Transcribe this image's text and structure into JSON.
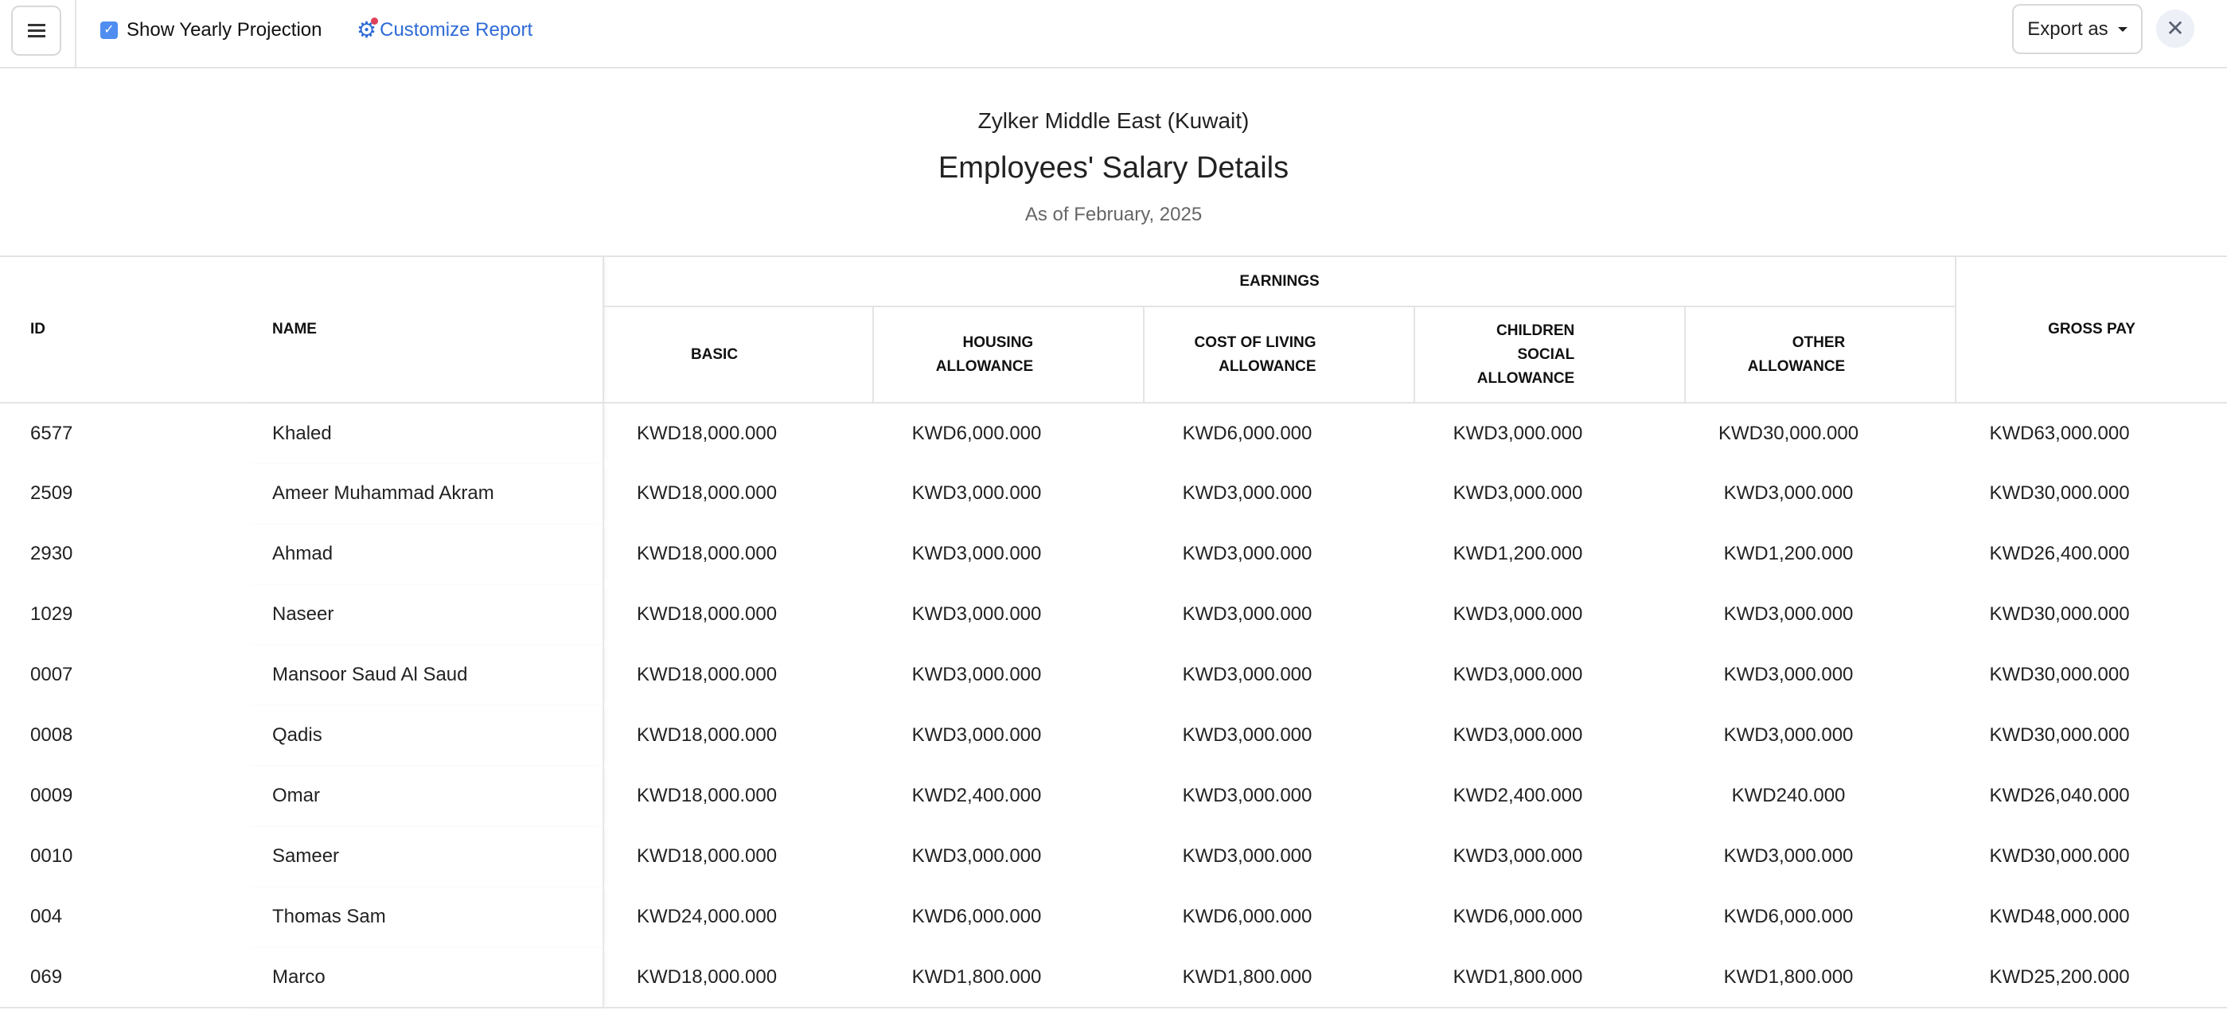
{
  "toolbar": {
    "show_yearly_projection": "Show Yearly Projection",
    "show_yearly_checked": true,
    "customize_report": "Customize Report",
    "export_as": "Export as",
    "accent_color": "#2d6ad6"
  },
  "report": {
    "company": "Zylker Middle East (Kuwait)",
    "title": "Employees' Salary Details",
    "subtitle": "As of February, 2025"
  },
  "table": {
    "headers": {
      "id": "ID",
      "name": "NAME",
      "earnings": "EARNINGS",
      "basic": "BASIC",
      "housing_1": "HOUSING",
      "housing_2": "ALLOWANCE",
      "col_1": "COST OF LIVING",
      "col_2": "ALLOWANCE",
      "children_1": "CHILDREN",
      "children_2": "SOCIAL",
      "children_3": "ALLOWANCE",
      "other_1": "OTHER",
      "other_2": "ALLOWANCE",
      "gross": "GROSS PAY"
    },
    "rows": [
      {
        "id": "6577",
        "name": "Khaled",
        "basic": "KWD18,000.000",
        "housing": "KWD6,000.000",
        "col": "KWD6,000.000",
        "children": "KWD3,000.000",
        "other": "KWD30,000.000",
        "gross": "KWD63,000.000"
      },
      {
        "id": "2509",
        "name": "Ameer Muhammad Akram",
        "basic": "KWD18,000.000",
        "housing": "KWD3,000.000",
        "col": "KWD3,000.000",
        "children": "KWD3,000.000",
        "other": "KWD3,000.000",
        "gross": "KWD30,000.000"
      },
      {
        "id": "2930",
        "name": "Ahmad",
        "basic": "KWD18,000.000",
        "housing": "KWD3,000.000",
        "col": "KWD3,000.000",
        "children": "KWD1,200.000",
        "other": "KWD1,200.000",
        "gross": "KWD26,400.000"
      },
      {
        "id": "1029",
        "name": "Naseer",
        "basic": "KWD18,000.000",
        "housing": "KWD3,000.000",
        "col": "KWD3,000.000",
        "children": "KWD3,000.000",
        "other": "KWD3,000.000",
        "gross": "KWD30,000.000"
      },
      {
        "id": "0007",
        "name": "Mansoor Saud Al Saud",
        "basic": "KWD18,000.000",
        "housing": "KWD3,000.000",
        "col": "KWD3,000.000",
        "children": "KWD3,000.000",
        "other": "KWD3,000.000",
        "gross": "KWD30,000.000"
      },
      {
        "id": "0008",
        "name": "Qadis",
        "basic": "KWD18,000.000",
        "housing": "KWD3,000.000",
        "col": "KWD3,000.000",
        "children": "KWD3,000.000",
        "other": "KWD3,000.000",
        "gross": "KWD30,000.000"
      },
      {
        "id": "0009",
        "name": "Omar",
        "basic": "KWD18,000.000",
        "housing": "KWD2,400.000",
        "col": "KWD3,000.000",
        "children": "KWD2,400.000",
        "other": "KWD240.000",
        "gross": "KWD26,040.000"
      },
      {
        "id": "0010",
        "name": "Sameer",
        "basic": "KWD18,000.000",
        "housing": "KWD3,000.000",
        "col": "KWD3,000.000",
        "children": "KWD3,000.000",
        "other": "KWD3,000.000",
        "gross": "KWD30,000.000"
      },
      {
        "id": "004",
        "name": "Thomas Sam",
        "basic": "KWD24,000.000",
        "housing": "KWD6,000.000",
        "col": "KWD6,000.000",
        "children": "KWD6,000.000",
        "other": "KWD6,000.000",
        "gross": "KWD48,000.000"
      },
      {
        "id": "069",
        "name": "Marco",
        "basic": "KWD18,000.000",
        "housing": "KWD1,800.000",
        "col": "KWD1,800.000",
        "children": "KWD1,800.000",
        "other": "KWD1,800.000",
        "gross": "KWD25,200.000"
      }
    ]
  }
}
